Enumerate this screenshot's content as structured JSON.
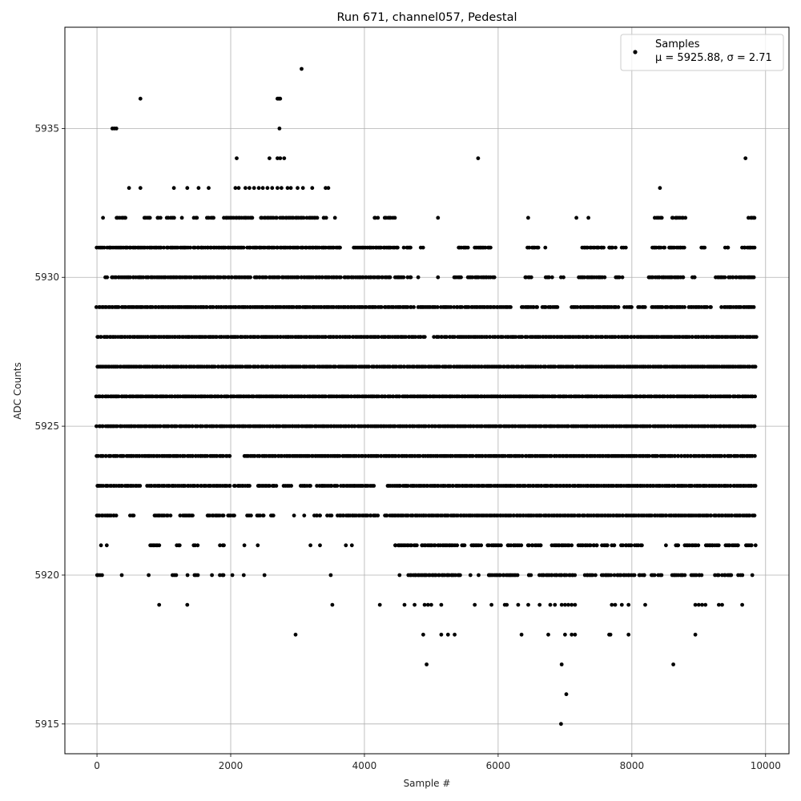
{
  "chart_data": {
    "type": "scatter",
    "title": "Run 671, channel057, Pedestal",
    "xlabel": "Sample #",
    "ylabel": "ADC Counts",
    "xlim": [
      -480,
      10350
    ],
    "ylim": [
      5914.0,
      5938.4
    ],
    "xticks": [
      0,
      2000,
      4000,
      6000,
      8000,
      10000
    ],
    "yticks": [
      5915,
      5920,
      5925,
      5930,
      5935
    ],
    "grid": true,
    "legend_position": "top-right",
    "legend": {
      "series_name": "Samples",
      "stats_line": "μ = 5925.88, σ = 2.71"
    },
    "series": [
      {
        "name": "Samples",
        "color": "#000000",
        "sample_count": 9850,
        "level_density": [
          {
            "y": 5937,
            "x": [
              3060
            ]
          },
          {
            "y": 5936,
            "x": [
              650,
              2700,
              2720,
              2740
            ]
          },
          {
            "y": 5935,
            "x": [
              230,
              260,
              290,
              2730
            ]
          },
          {
            "y": 5934,
            "x": [
              2090,
              2580,
              2700,
              2740,
              2800,
              5700,
              9700
            ]
          },
          {
            "y": 5933,
            "x": [
              480,
              650,
              1150,
              1350,
              1520,
              1670,
              2070,
              2120,
              2220,
              2280,
              2350,
              2420,
              2480,
              2550,
              2620,
              2700,
              2760,
              2850,
              2900,
              3000,
              3080,
              3220,
              3420,
              3460,
              8420
            ]
          },
          {
            "y": 5932,
            "x_ranges": [
              [
                90,
                90
              ],
              [
                290,
                450
              ],
              [
                700,
                800
              ],
              [
                900,
                950
              ],
              [
                1050,
                1150
              ],
              [
                1280,
                1300
              ],
              [
                1450,
                1500
              ],
              [
                1650,
                1750
              ],
              [
                1900,
                2350
              ],
              [
                2450,
                2700
              ],
              [
                2750,
                3100
              ],
              [
                3150,
                3300
              ],
              [
                3380,
                3450
              ],
              [
                3550,
                3560
              ],
              [
                4150,
                4200
              ],
              [
                4300,
                4450
              ],
              [
                5100,
                5100
              ],
              [
                6450,
                6470
              ],
              [
                7170,
                7170
              ],
              [
                7350,
                7350
              ],
              [
                8350,
                8450
              ],
              [
                8600,
                8800
              ],
              [
                9750,
                9850
              ]
            ]
          },
          {
            "y": 5931,
            "x_ranges": [
              [
                0,
                100
              ],
              [
                150,
                1000
              ],
              [
                1050,
                1400
              ],
              [
                1450,
                2200
              ],
              [
                2250,
                3650
              ],
              [
                3850,
                4500
              ],
              [
                4600,
                4700
              ],
              [
                4850,
                4880
              ],
              [
                5400,
                5550
              ],
              [
                5650,
                5900
              ],
              [
                6450,
                6600
              ],
              [
                6700,
                6720
              ],
              [
                7250,
                7600
              ],
              [
                7650,
                7750
              ],
              [
                7850,
                7900
              ],
              [
                8300,
                8500
              ],
              [
                8550,
                8800
              ],
              [
                9050,
                9100
              ],
              [
                9400,
                9450
              ],
              [
                9650,
                9850
              ]
            ]
          },
          {
            "y": 5930,
            "x_ranges": [
              [
                120,
                150
              ],
              [
                220,
                1400
              ],
              [
                1450,
                2300
              ],
              [
                2350,
                3650
              ],
              [
                3700,
                4400
              ],
              [
                4450,
                4600
              ],
              [
                4650,
                4700
              ],
              [
                4800,
                4820
              ],
              [
                5100,
                5100
              ],
              [
                5350,
                5450
              ],
              [
                5550,
                5950
              ],
              [
                6400,
                6500
              ],
              [
                6700,
                6800
              ],
              [
                6950,
                6980
              ],
              [
                7200,
                7600
              ],
              [
                7750,
                7850
              ],
              [
                8250,
                8800
              ],
              [
                8900,
                8950
              ],
              [
                9250,
                9400
              ],
              [
                9450,
                9850
              ]
            ]
          },
          {
            "y": 5929,
            "x_ranges": [
              [
                0,
                4250
              ],
              [
                4300,
                4750
              ],
              [
                4800,
                5100
              ],
              [
                5150,
                5300
              ],
              [
                5350,
                6200
              ],
              [
                6350,
                6600
              ],
              [
                6650,
                6900
              ],
              [
                7100,
                7800
              ],
              [
                7900,
                8000
              ],
              [
                8100,
                8200
              ],
              [
                8300,
                8800
              ],
              [
                8850,
                9200
              ],
              [
                9350,
                9850
              ]
            ]
          },
          {
            "y": 5928,
            "x_ranges": [
              [
                0,
                4900
              ],
              [
                5050,
                9850
              ]
            ]
          },
          {
            "y": 5927,
            "x_ranges": [
              [
                0,
                9850
              ]
            ]
          },
          {
            "y": 5926,
            "x_ranges": [
              [
                0,
                9850
              ]
            ]
          },
          {
            "y": 5925,
            "x_ranges": [
              [
                0,
                2500
              ],
              [
                2550,
                9850
              ]
            ]
          },
          {
            "y": 5924,
            "x_ranges": [
              [
                0,
                2000
              ],
              [
                2200,
                9850
              ]
            ]
          },
          {
            "y": 5923,
            "x_ranges": [
              [
                0,
                650
              ],
              [
                750,
                2000
              ],
              [
                2050,
                2300
              ],
              [
                2400,
                2700
              ],
              [
                2800,
                2900
              ],
              [
                3050,
                3200
              ],
              [
                3300,
                3600
              ],
              [
                3650,
                4150
              ],
              [
                4350,
                9850
              ]
            ]
          },
          {
            "y": 5922,
            "x_ranges": [
              [
                0,
                300
              ],
              [
                500,
                550
              ],
              [
                850,
                1100
              ],
              [
                1250,
                1450
              ],
              [
                1650,
                1900
              ],
              [
                1950,
                2050
              ],
              [
                2250,
                2300
              ],
              [
                2400,
                2500
              ],
              [
                2600,
                2650
              ],
              [
                2950,
                2970
              ],
              [
                3100,
                3100
              ],
              [
                3250,
                3350
              ],
              [
                3450,
                3500
              ],
              [
                3600,
                4200
              ],
              [
                4300,
                9850
              ]
            ]
          },
          {
            "y": 5921,
            "x_ranges": [
              [
                60,
                80
              ],
              [
                150,
                160
              ],
              [
                790,
                950
              ],
              [
                1200,
                1250
              ],
              [
                1450,
                1500
              ],
              [
                1850,
                1900
              ],
              [
                2200,
                2220
              ],
              [
                2400,
                2420
              ],
              [
                3200,
                3220
              ],
              [
                3330,
                3350
              ],
              [
                3730,
                3750
              ],
              [
                3820,
                3840
              ],
              [
                4450,
                4800
              ],
              [
                4850,
                5400
              ],
              [
                5450,
                5500
              ],
              [
                5600,
                5750
              ],
              [
                5850,
                6050
              ],
              [
                6150,
                6350
              ],
              [
                6450,
                6650
              ],
              [
                6800,
                7100
              ],
              [
                7200,
                7500
              ],
              [
                7550,
                7650
              ],
              [
                7700,
                7750
              ],
              [
                7850,
                8000
              ],
              [
                8050,
                8150
              ],
              [
                8500,
                8520
              ],
              [
                8650,
                8700
              ],
              [
                8800,
                9000
              ],
              [
                9100,
                9300
              ],
              [
                9400,
                9600
              ],
              [
                9700,
                9800
              ],
              [
                9850,
                9850
              ]
            ]
          },
          {
            "y": 5920,
            "x_ranges": [
              [
                0,
                80
              ],
              [
                380,
                400
              ],
              [
                780,
                800
              ],
              [
                1130,
                1200
              ],
              [
                1350,
                1360
              ],
              [
                1450,
                1500
              ],
              [
                1730,
                1750
              ],
              [
                1850,
                1900
              ],
              [
                2030,
                2050
              ],
              [
                2200,
                2220
              ],
              [
                2500,
                2520
              ],
              [
                3500,
                3520
              ],
              [
                4520,
                4540
              ],
              [
                4650,
                5450
              ],
              [
                5580,
                5600
              ],
              [
                5700,
                5720
              ],
              [
                5850,
                6300
              ],
              [
                6450,
                6500
              ],
              [
                6620,
                7150
              ],
              [
                7300,
                7450
              ],
              [
                7550,
                7700
              ],
              [
                7750,
                8050
              ],
              [
                8100,
                8200
              ],
              [
                8300,
                8350
              ],
              [
                8400,
                8450
              ],
              [
                8600,
                8800
              ],
              [
                8900,
                9050
              ],
              [
                9250,
                9300
              ],
              [
                9350,
                9500
              ],
              [
                9600,
                9650
              ],
              [
                9800,
                9820
              ]
            ]
          },
          {
            "y": 5919,
            "x": [
              930,
              1350,
              3520,
              4230,
              4600,
              4750,
              4900,
              4950,
              5000,
              5150,
              5650,
              5900,
              6100,
              6130,
              6300,
              6450,
              6620,
              6780,
              6850,
              6950,
              7000,
              7050,
              7100,
              7150,
              7700,
              7750,
              7850,
              7950,
              8200,
              8950,
              9000,
              9050,
              9100,
              9300,
              9350,
              9650
            ]
          },
          {
            "y": 5918,
            "x": [
              2970,
              4880,
              5150,
              5250,
              5350,
              6350,
              6750,
              7000,
              7100,
              7150,
              7660,
              7680,
              7950,
              8950
            ]
          },
          {
            "y": 5917,
            "x": [
              4930,
              6950,
              8620
            ]
          },
          {
            "y": 5916,
            "x": [
              7020
            ]
          },
          {
            "y": 5915,
            "x": [
              6940
            ]
          }
        ]
      }
    ]
  }
}
